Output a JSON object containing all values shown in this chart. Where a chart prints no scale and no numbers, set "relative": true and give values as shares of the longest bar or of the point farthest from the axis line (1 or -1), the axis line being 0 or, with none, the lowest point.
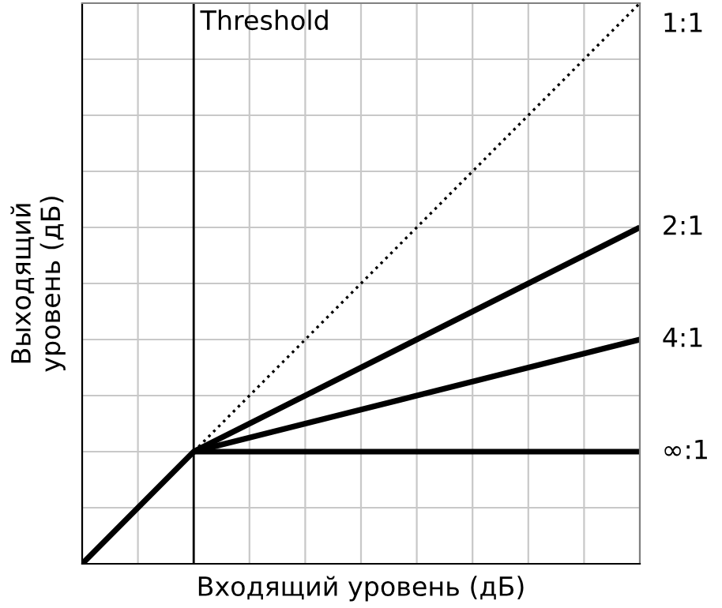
{
  "chart_data": {
    "type": "line",
    "relative": true,
    "xlabel": "Входящий уровень (дБ)",
    "ylabel": "Выходящий\nуровень (дБ)",
    "categories": [
      null,
      null,
      null,
      null,
      null,
      null,
      null,
      null,
      null,
      null,
      null
    ],
    "grid": true,
    "legend": false,
    "marker": "none",
    "annotations": [
      "Threshold"
    ],
    "series": [
      {
        "name": "1:1",
        "color": "#000000",
        "line_style": "dotted",
        "values": [
          null,
          null,
          0.2,
          0.3,
          0.4,
          0.5,
          0.6,
          0.7,
          0.8,
          0.9,
          1.0
        ]
      },
      {
        "name": "2:1",
        "color": "#000000",
        "line_style": "solid",
        "values": [
          null,
          null,
          0.2,
          0.25,
          0.3,
          0.35,
          0.4,
          0.45,
          0.5,
          0.55,
          0.6
        ]
      },
      {
        "name": "4:1",
        "color": "#000000",
        "line_style": "solid",
        "values": [
          null,
          null,
          0.2,
          0.225,
          0.25,
          0.275,
          0.3,
          0.325,
          0.35,
          0.375,
          0.4
        ]
      },
      {
        "name": "∞:1",
        "color": "#000000",
        "line_style": "solid",
        "values": [
          0,
          0.1,
          0.2,
          0.2,
          0.2,
          0.2,
          0.2,
          0.2,
          0.2,
          0.2,
          0.2
        ]
      }
    ]
  }
}
